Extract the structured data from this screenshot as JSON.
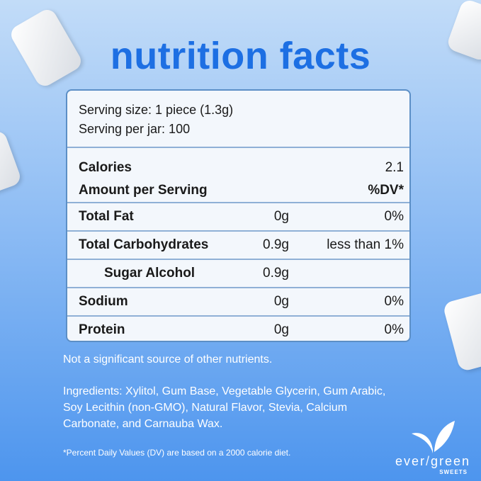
{
  "title": "nutrition facts",
  "serving": {
    "size": "Serving size: 1 piece (1.3g)",
    "per_jar": "Serving per jar: 100"
  },
  "calories": {
    "label": "Calories",
    "value": "2.1",
    "amount_label": "Amount per Serving",
    "dv_label": "%DV*"
  },
  "rows": [
    {
      "name": "Total Fat",
      "amount": "0g",
      "dv": "0%"
    },
    {
      "name": "Total Carbohydrates",
      "amount": "0.9g",
      "dv": "less than 1%"
    },
    {
      "name": "Sugar Alcohol",
      "amount": "0.9g",
      "dv": ""
    },
    {
      "name": "Sodium",
      "amount": "0g",
      "dv": "0%"
    },
    {
      "name": "Protein",
      "amount": "0g",
      "dv": "0%"
    }
  ],
  "note": "Not a significant source of other nutrients.",
  "ingredients": "Ingredients: Xylitol, Gum Base, Vegetable Glycerin, Gum Arabic, Soy Lecithin (non-GMO), Natural Flavor, Stevia, Calcium Carbonate, and Carnauba Wax.",
  "footnote": "*Percent Daily Values (DV) are based on a 2000 calorie diet.",
  "logo": {
    "word": "evergreen",
    "sub": "SWEETS"
  },
  "colors": {
    "title": "#1d6fe3",
    "border": "#5c8fc6"
  }
}
